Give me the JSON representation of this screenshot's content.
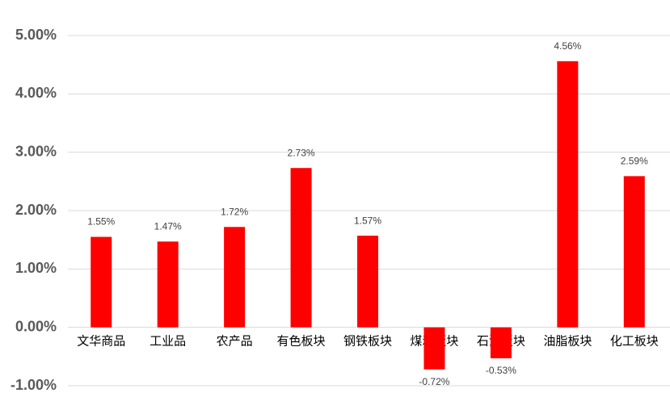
{
  "chart_data": {
    "type": "bar",
    "categories": [
      "文华商品",
      "工业品",
      "农产品",
      "有色板块",
      "钢铁板块",
      "煤炭板块",
      "石油板块",
      "油脂板块",
      "化工板块"
    ],
    "values": [
      1.55,
      1.47,
      1.72,
      2.73,
      1.57,
      -0.72,
      -0.53,
      4.56,
      2.59
    ],
    "value_labels": [
      "1.55%",
      "1.47%",
      "1.72%",
      "2.73%",
      "1.57%",
      "-0.72%",
      "-0.53%",
      "4.56%",
      "2.59%"
    ],
    "color": "#ff0000",
    "ylim": [
      -1,
      5
    ],
    "yticks": [
      {
        "value": -1,
        "label": "-1.00%"
      },
      {
        "value": 0,
        "label": "0.00%"
      },
      {
        "value": 1,
        "label": "1.00%"
      },
      {
        "value": 2,
        "label": "2.00%"
      },
      {
        "value": 3,
        "label": "3.00%"
      },
      {
        "value": 4,
        "label": "4.00%"
      },
      {
        "value": 5,
        "label": "5.00%"
      }
    ],
    "grid": true
  }
}
